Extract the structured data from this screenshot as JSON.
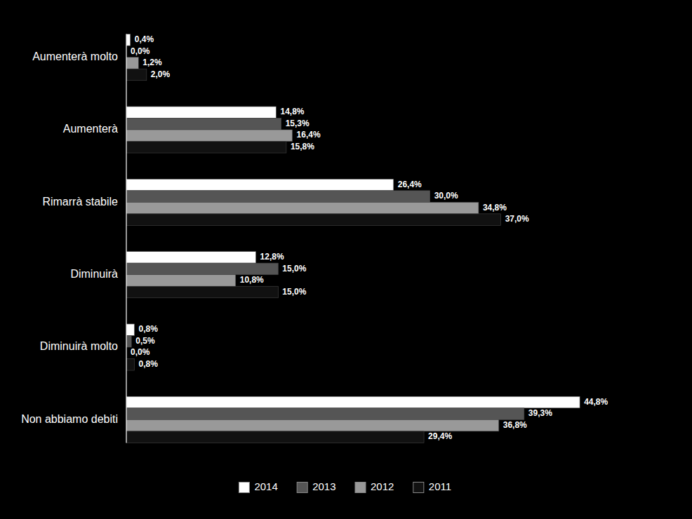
{
  "chart_data": {
    "type": "bar",
    "orientation": "horizontal",
    "categories": [
      "Aumenterà molto",
      "Aumenterà",
      "Rimarrà stabile",
      "Diminuirà",
      "Diminuirà molto",
      "Non abbiamo debiti"
    ],
    "series": [
      {
        "name": "2014",
        "color": "#ffffff",
        "values": [
          0.4,
          14.8,
          26.4,
          12.8,
          0.8,
          44.8
        ],
        "value_labels": [
          "0,4%",
          "14,8%",
          "26,4%",
          "12,8%",
          "0,8%",
          "44,8%"
        ]
      },
      {
        "name": "2013",
        "color": "#555555",
        "values": [
          0.0,
          15.3,
          30.0,
          15.0,
          0.5,
          39.3
        ],
        "value_labels": [
          "0,0%",
          "15,3%",
          "30,0%",
          "15,0%",
          "0,5%",
          "39,3%"
        ]
      },
      {
        "name": "2012",
        "color": "#999999",
        "values": [
          1.2,
          16.4,
          34.8,
          10.8,
          0.0,
          36.8
        ],
        "value_labels": [
          "1,2%",
          "16,4%",
          "34,8%",
          "10,8%",
          "0,0%",
          "36,8%"
        ]
      },
      {
        "name": "2011",
        "color": "#111111",
        "values": [
          2.0,
          15.8,
          37.0,
          15.0,
          0.8,
          29.4
        ],
        "value_labels": [
          "2,0%",
          "15,8%",
          "37,0%",
          "15,0%",
          "0,8%",
          "29,4%"
        ]
      }
    ],
    "xlim": [
      0,
      52
    ],
    "tick_labels": "y",
    "data_labels": true,
    "legend": "bottom",
    "grid": false
  }
}
